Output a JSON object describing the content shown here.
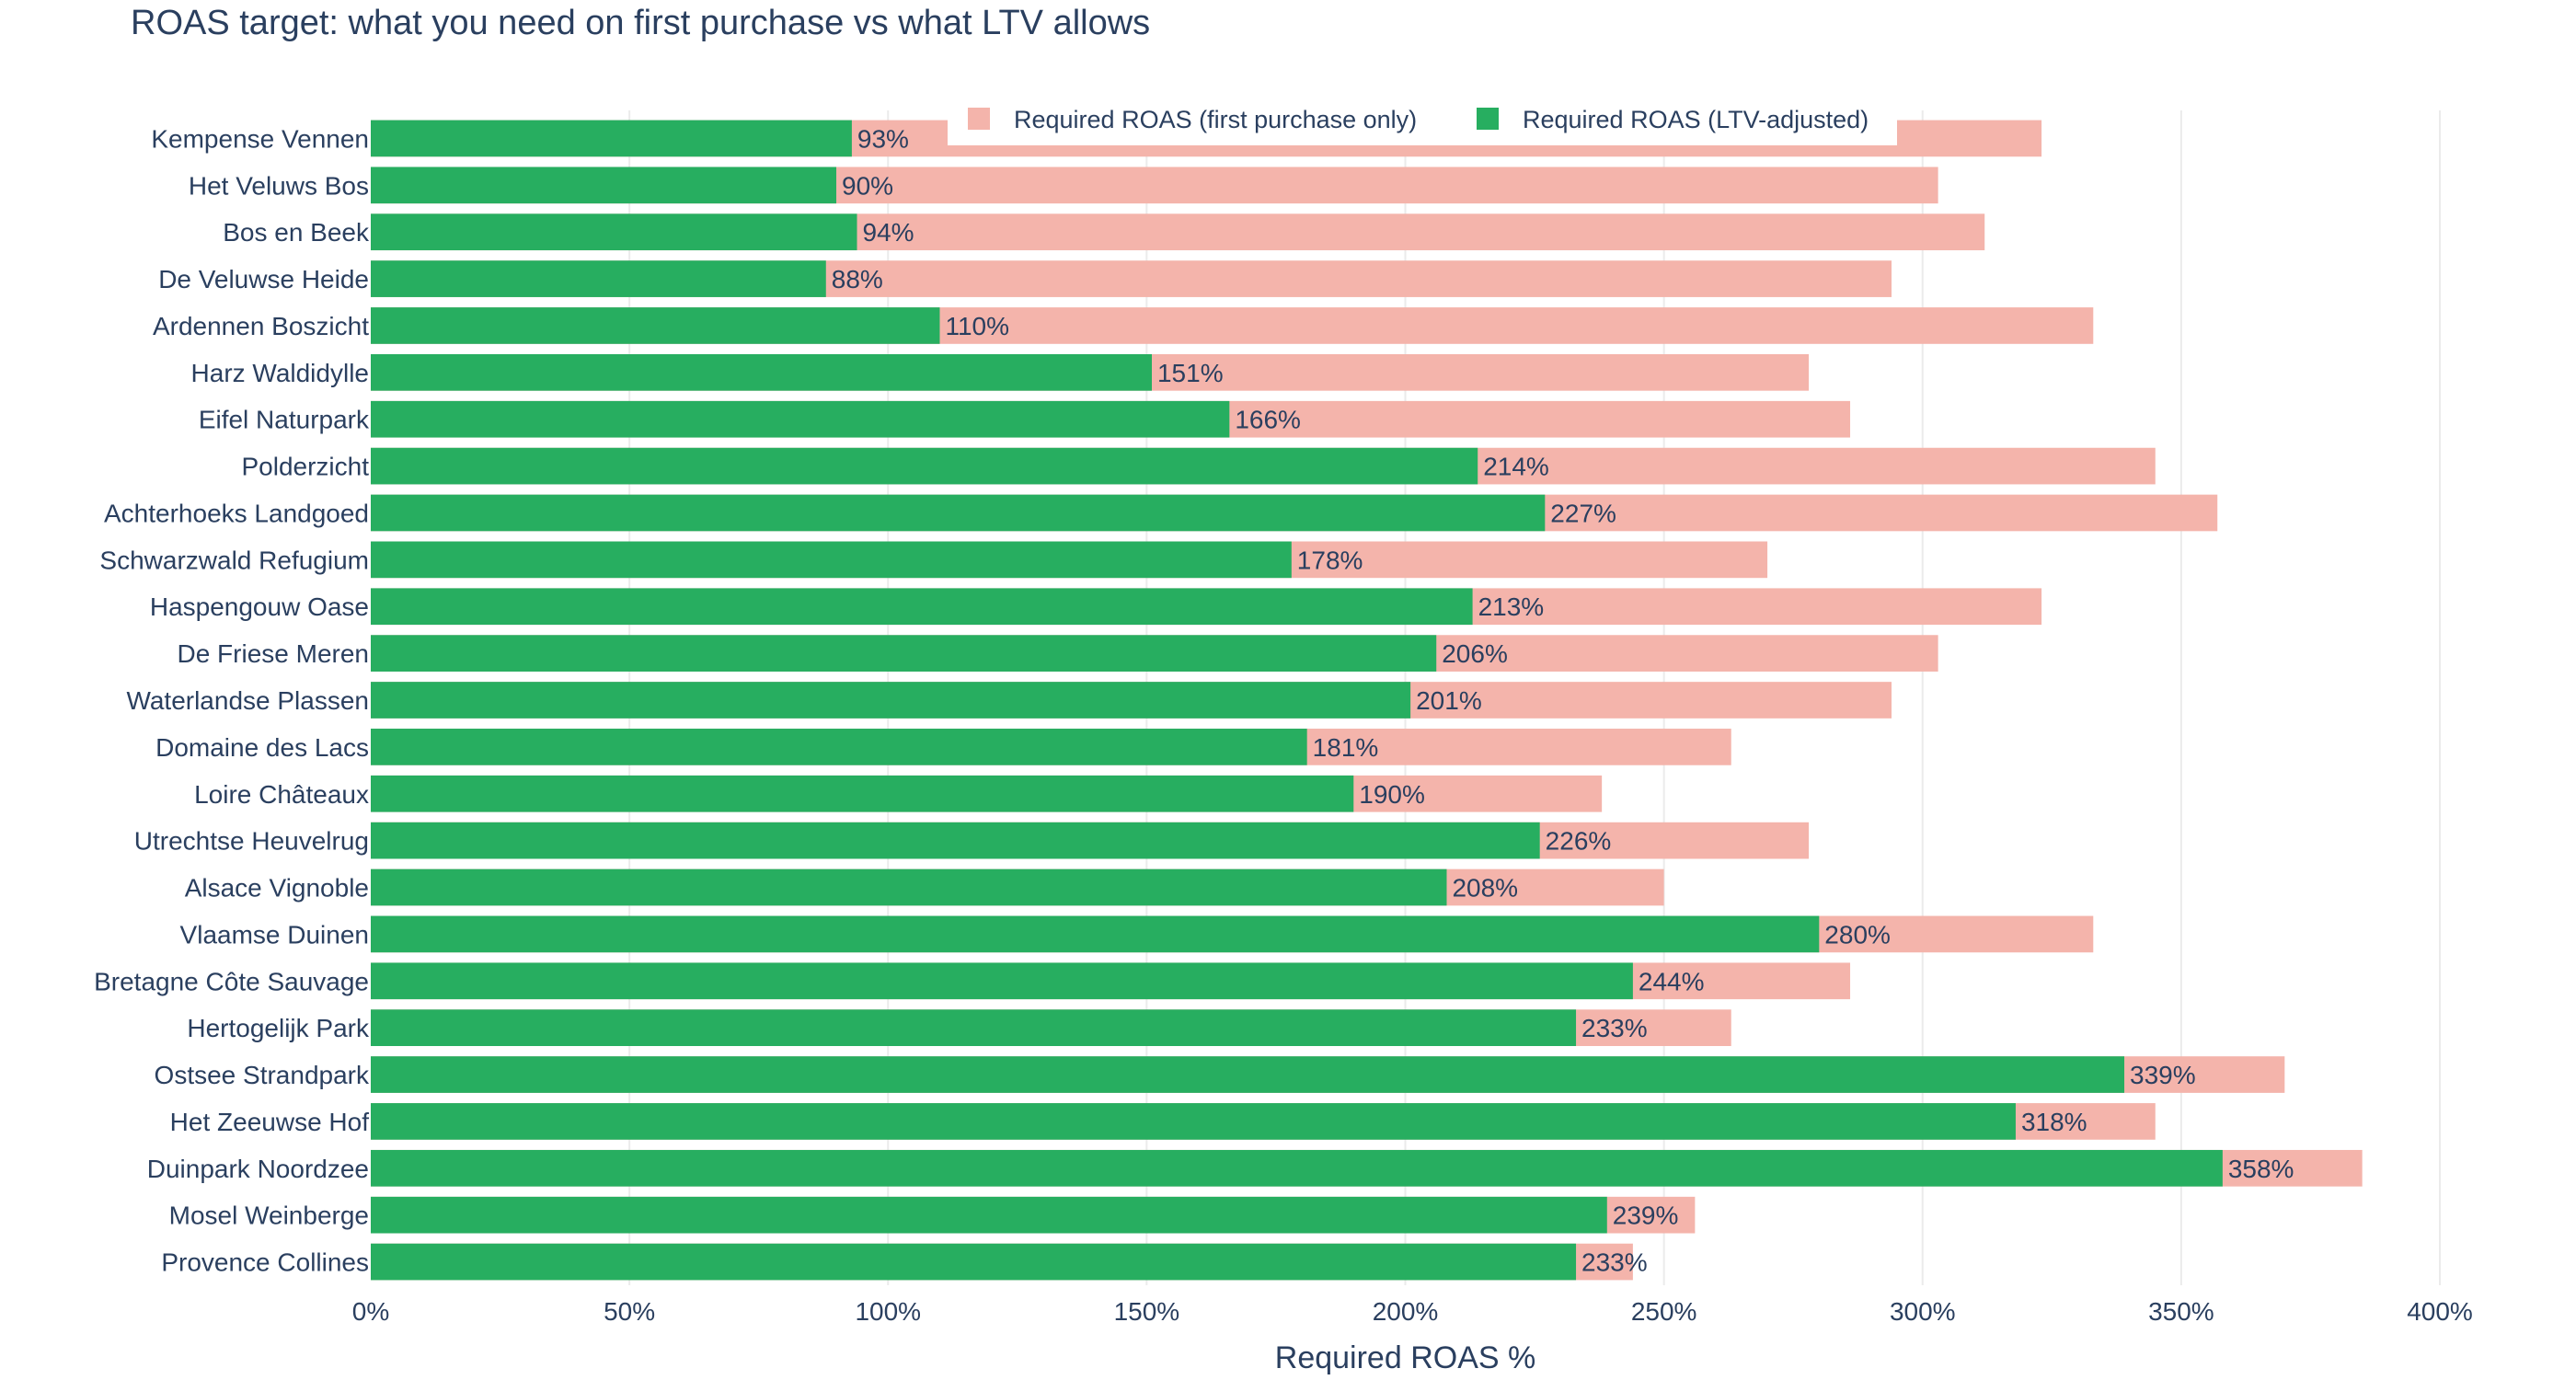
{
  "chart_data": {
    "type": "bar",
    "orientation": "horizontal",
    "title": "ROAS target: what you need on first purchase vs what LTV allows",
    "xlabel": "Required ROAS %",
    "ylabel": "",
    "xlim": [
      0,
      400
    ],
    "x_ticks": [
      0,
      50,
      100,
      150,
      200,
      250,
      300,
      350,
      400
    ],
    "x_tick_suffix": "%",
    "grid": true,
    "barmode": "overlay",
    "legend": {
      "placement": "top-center",
      "orientation": "horizontal"
    },
    "categories": [
      "Kempense Vennen",
      "Het Veluws Bos",
      "Bos en Beek",
      "De Veluwse Heide",
      "Ardennen Boszicht",
      "Harz Waldidylle",
      "Eifel Naturpark",
      "Polderzicht",
      "Achterhoeks Landgoed",
      "Schwarzwald Refugium",
      "Haspengouw Oase",
      "De Friese Meren",
      "Waterlandse Plassen",
      "Domaine des Lacs",
      "Loire Châteaux",
      "Utrechtse Heuvelrug",
      "Alsace Vignoble",
      "Vlaamse Duinen",
      "Bretagne Côte Sauvage",
      "Hertogelijk Park",
      "Ostsee Strandpark",
      "Het Zeeuwse Hof",
      "Duinpark Noordzee",
      "Mosel Weinberge",
      "Provence Collines"
    ],
    "series": [
      {
        "name": "Required ROAS (first purchase only)",
        "color": "#f4b4ab",
        "values": [
          323,
          303,
          312,
          294,
          333,
          278,
          286,
          345,
          357,
          270,
          323,
          303,
          294,
          263,
          238,
          278,
          250,
          333,
          286,
          263,
          370,
          345,
          385,
          256,
          244
        ]
      },
      {
        "name": "Required ROAS (LTV-adjusted)",
        "color": "#27ae60",
        "values": [
          93,
          90,
          94,
          88,
          110,
          151,
          166,
          214,
          227,
          178,
          213,
          206,
          201,
          181,
          190,
          226,
          208,
          280,
          244,
          233,
          339,
          318,
          358,
          239,
          233
        ],
        "labels": [
          "93%",
          "90%",
          "94%",
          "88%",
          "110%",
          "151%",
          "166%",
          "214%",
          "227%",
          "178%",
          "213%",
          "206%",
          "201%",
          "181%",
          "190%",
          "226%",
          "208%",
          "280%",
          "244%",
          "233%",
          "339%",
          "318%",
          "358%",
          "239%",
          "233%"
        ]
      }
    ]
  }
}
